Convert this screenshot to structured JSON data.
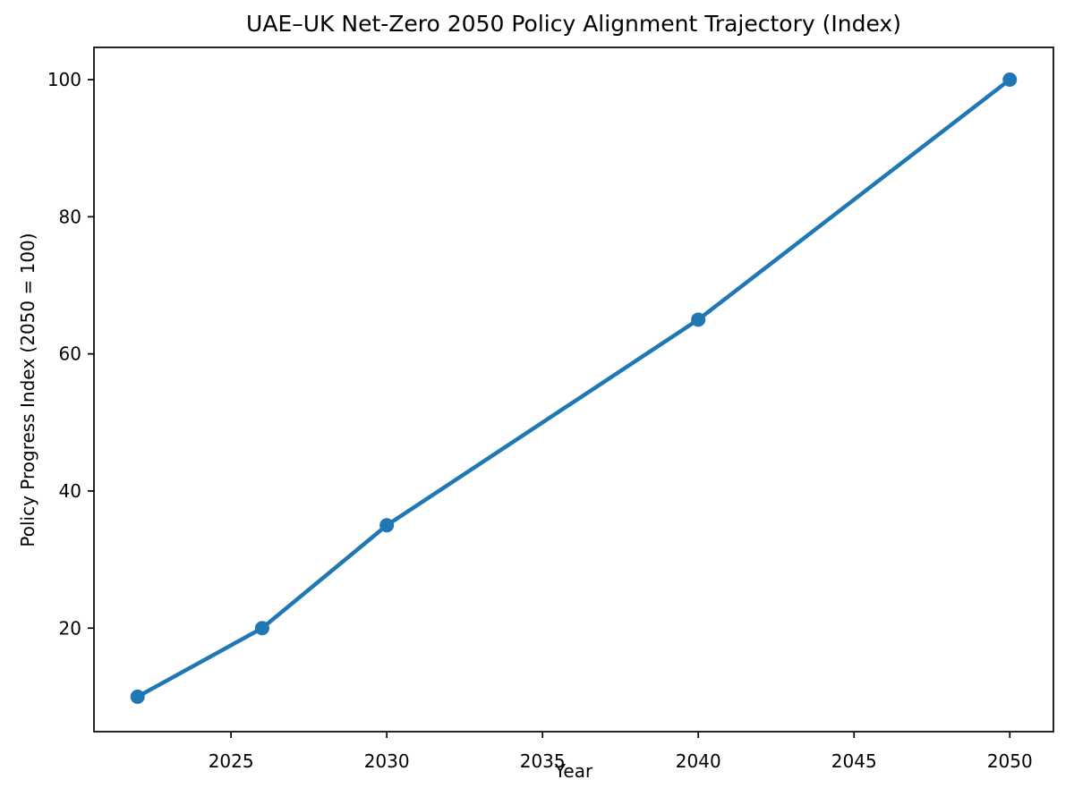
{
  "figure": {
    "background": "#ffffff"
  },
  "chart_data": {
    "type": "line",
    "title": "UAE–UK Net-Zero 2050 Policy Alignment Trajectory (Index)",
    "xlabel": "Year",
    "ylabel": "Policy Progress Index (2050 = 100)",
    "x": [
      2022,
      2026,
      2030,
      2040,
      2050
    ],
    "y": [
      10,
      20,
      35,
      65,
      100
    ],
    "xticks": [
      2025,
      2030,
      2035,
      2040,
      2045,
      2050
    ],
    "yticks": [
      20,
      40,
      60,
      80,
      100
    ],
    "xlim": [
      2020.6,
      2051.4
    ],
    "ylim": [
      4.9,
      104.7
    ],
    "line_color": "#1f77b4",
    "marker_color": "#1f77b4",
    "marker": "circle",
    "axis_color": "#000000",
    "grid": false,
    "legend_position": "none"
  }
}
